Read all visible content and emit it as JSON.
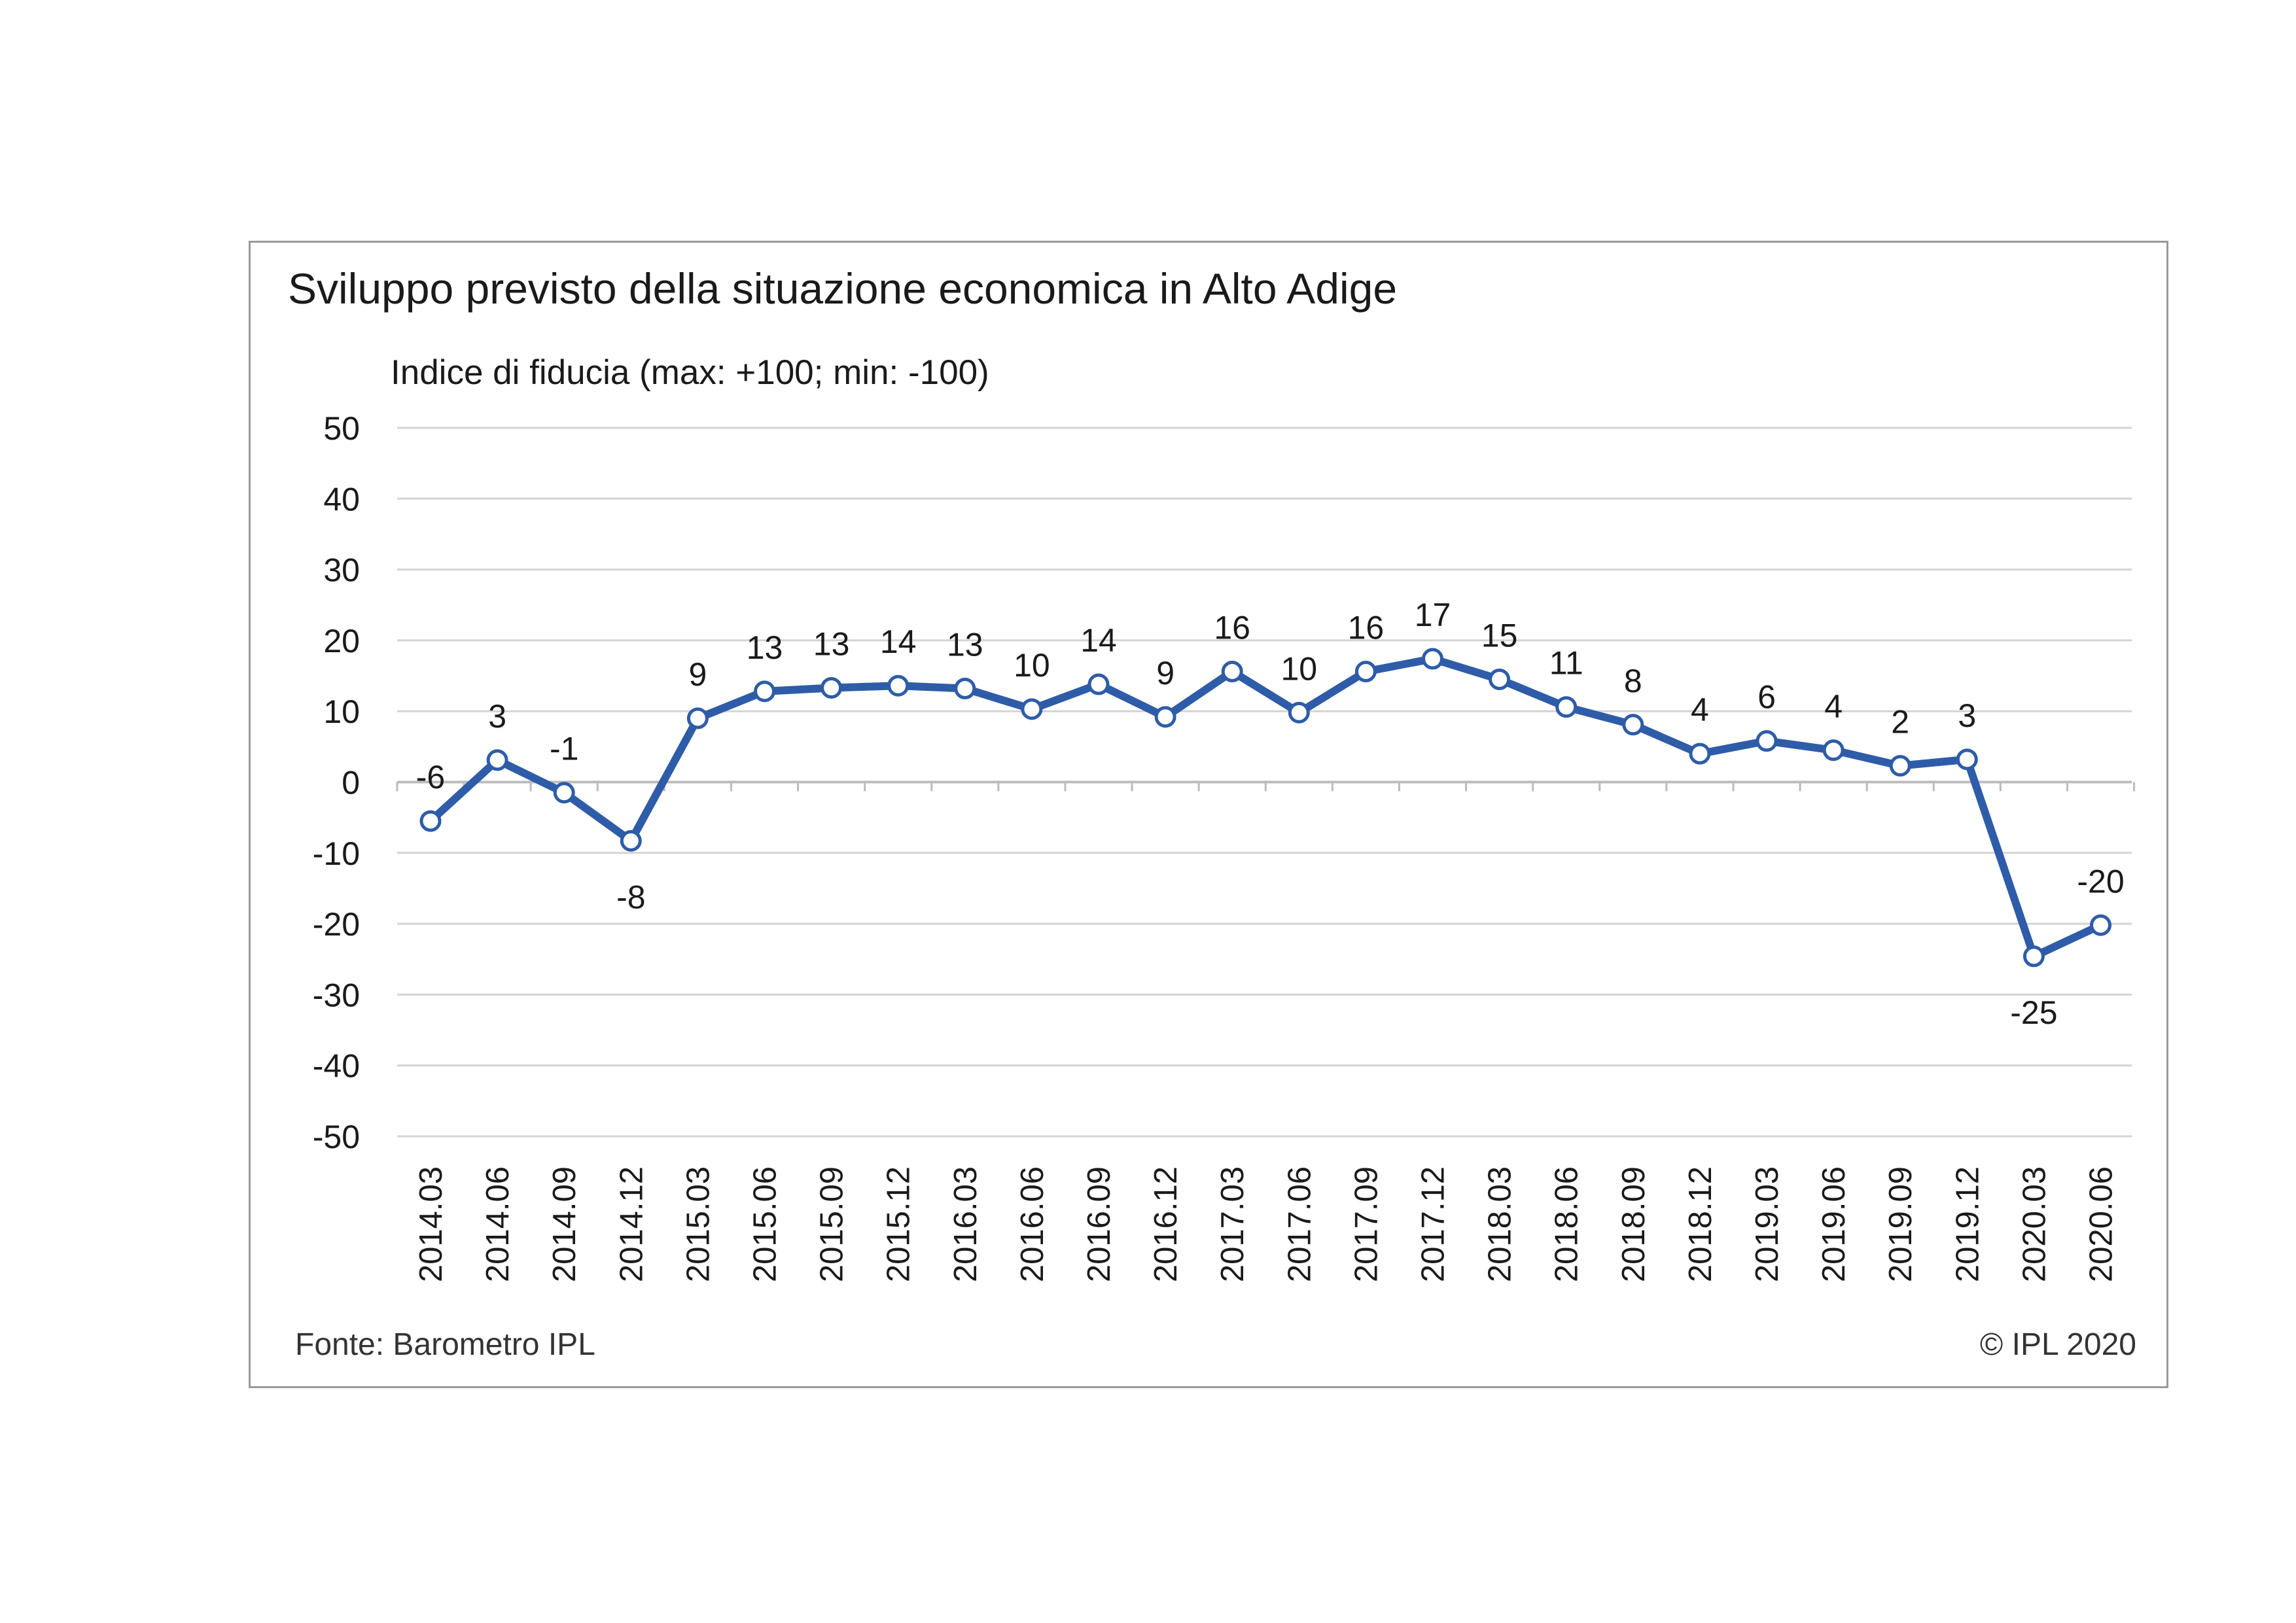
{
  "chart_data": {
    "type": "line",
    "title": "Sviluppo previsto della situazione economica in Alto Adige",
    "ylabel": "Indice di fiducia (max: +100; min: -100)",
    "xlabel": "",
    "ylim": [
      -50,
      50
    ],
    "yticks": [
      "50",
      "40",
      "30",
      "20",
      "10",
      "0",
      "-10",
      "-20",
      "-30",
      "-40",
      "-50"
    ],
    "grid": true,
    "legend": "none",
    "categories": [
      "2014.03",
      "2014.06",
      "2014.09",
      "2014.12",
      "2015.03",
      "2015.06",
      "2015.09",
      "2015.12",
      "2016.03",
      "2016.06",
      "2016.09",
      "2016.12",
      "2017.03",
      "2017.06",
      "2017.09",
      "2017.12",
      "2018.03",
      "2018.06",
      "2018.09",
      "2018.12",
      "2019.03",
      "2019.06",
      "2019.09",
      "2019.12",
      "2020.03",
      "2020.06"
    ],
    "series": [
      {
        "values": [
          -5.5,
          3.1,
          -1.5,
          -8.3,
          9.0,
          12.8,
          13.3,
          13.6,
          13.2,
          10.3,
          13.8,
          9.2,
          15.6,
          9.8,
          15.6,
          17.4,
          14.5,
          10.6,
          8.1,
          4.0,
          5.8,
          4.5,
          2.3,
          3.2,
          -24.6,
          -20.2
        ],
        "labels": [
          "-6",
          "3",
          "-1",
          "-8",
          "9",
          "13",
          "13",
          "14",
          "13",
          "10",
          "14",
          "9",
          "16",
          "10",
          "16",
          "17",
          "15",
          "11",
          "8",
          "4",
          "6",
          "4",
          "2",
          "3",
          "-25",
          "-20"
        ],
        "label_positions": [
          "above",
          "above",
          "above",
          "below",
          "above",
          "above",
          "above",
          "above",
          "above",
          "above",
          "above",
          "above",
          "above",
          "above",
          "above",
          "above",
          "above",
          "above",
          "above",
          "above",
          "above",
          "above",
          "above",
          "above",
          "below",
          "above"
        ],
        "color": "#2e5ca8"
      }
    ]
  },
  "footer": {
    "source": "Fonte: Barometro IPL",
    "copyright": "© IPL 2020"
  },
  "colors": {
    "line": "#2e5ca8",
    "grid": "#d4d4d4",
    "zero_axis": "#bcbcbc",
    "frame": "#9a9a9a"
  }
}
